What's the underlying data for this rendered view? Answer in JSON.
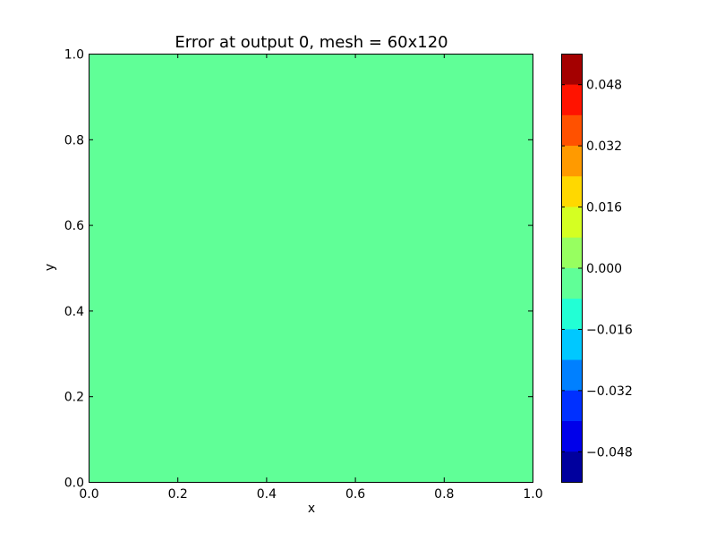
{
  "chart_data": {
    "type": "heatmap",
    "title": "Error at output 0, mesh = 60x120",
    "xlabel": "x",
    "ylabel": "y",
    "xlim": [
      0.0,
      1.0
    ],
    "ylim": [
      0.0,
      1.0
    ],
    "x_ticks": [
      "0.0",
      "0.2",
      "0.4",
      "0.6",
      "0.8",
      "1.0"
    ],
    "y_ticks": [
      "0.0",
      "0.2",
      "0.4",
      "0.6",
      "0.8",
      "1.0"
    ],
    "grid": false,
    "field_value": 0.0,
    "field_color": "#60ff97",
    "colorbar": {
      "range": [
        -0.056,
        0.056
      ],
      "levels": 14,
      "colors": [
        "#00009e",
        "#0000ea",
        "#0030ff",
        "#0080ff",
        "#00c8ff",
        "#22ffd5",
        "#60ff97",
        "#97ff60",
        "#d5ff22",
        "#ffd800",
        "#ff9a00",
        "#ff5100",
        "#ff1300",
        "#a40000"
      ],
      "tick_values": [
        -0.048,
        -0.032,
        -0.016,
        0.0,
        0.016,
        0.032,
        0.048
      ],
      "tick_labels": [
        "−0.048",
        "−0.032",
        "−0.016",
        "0.000",
        "0.016",
        "0.032",
        "0.048"
      ]
    }
  }
}
